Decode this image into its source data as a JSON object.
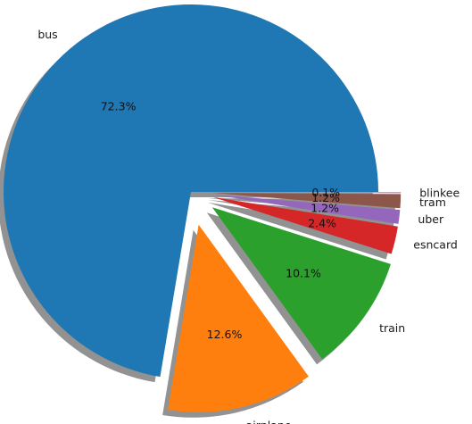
{
  "chart_data": {
    "type": "pie",
    "title": "",
    "shadow": true,
    "exploded": true,
    "slices": [
      {
        "label": "bus",
        "percent_label": "72.3%",
        "value": 72.3,
        "color": "#1f77b4"
      },
      {
        "label": "airplane",
        "percent_label": "12.6%",
        "value": 12.6,
        "color": "#ff7f0e"
      },
      {
        "label": "train",
        "percent_label": "10.1%",
        "value": 10.1,
        "color": "#2ca02c"
      },
      {
        "label": "esncard",
        "percent_label": "2.4%",
        "value": 2.4,
        "color": "#d62728"
      },
      {
        "label": "uber",
        "percent_label": "1.2%",
        "value": 1.2,
        "color": "#9467bd"
      },
      {
        "label": "tram",
        "percent_label": "1.2%",
        "value": 1.2,
        "color": "#8c564b"
      },
      {
        "label": "blinkee",
        "percent_label": "0.1%",
        "value": 0.1,
        "color": "#e377c2"
      }
    ]
  }
}
